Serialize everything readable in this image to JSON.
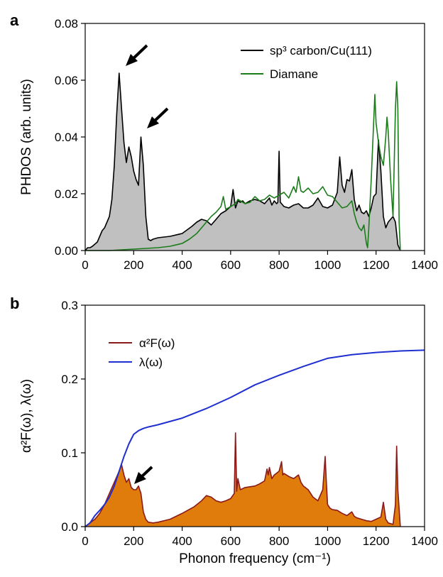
{
  "figure": {
    "xlabel": "Phonon frequency (cm⁻¹)"
  },
  "chart_data": [
    {
      "panel": "a",
      "type": "area",
      "ylabel": "PHDOS (arb. units)",
      "xlim": [
        0,
        1400
      ],
      "ylim": [
        0,
        0.08
      ],
      "xticks": [
        "0",
        "200",
        "400",
        "600",
        "800",
        "1000",
        "1200",
        "1400"
      ],
      "yticks": [
        "0.00",
        "0.02",
        "0.04",
        "0.06",
        "0.08"
      ],
      "legend_position": "top-right",
      "series": [
        {
          "name": "sp³ carbon/Cu(111)",
          "color": "#000000",
          "fill": "#c0c0c0",
          "x": [
            0,
            10,
            20,
            30,
            50,
            60,
            70,
            80,
            100,
            110,
            120,
            130,
            140,
            150,
            160,
            170,
            180,
            190,
            200,
            210,
            220,
            230,
            240,
            250,
            260,
            270,
            280,
            300,
            350,
            400,
            440,
            460,
            480,
            500,
            520,
            540,
            560,
            580,
            600,
            610,
            620,
            630,
            640,
            650,
            660,
            680,
            700,
            720,
            740,
            760,
            770,
            780,
            790,
            795,
            800,
            805,
            810,
            820,
            840,
            860,
            880,
            900,
            920,
            940,
            960,
            980,
            1000,
            1020,
            1040,
            1050,
            1060,
            1070,
            1080,
            1090,
            1100,
            1110,
            1120,
            1130,
            1140,
            1150,
            1160,
            1170,
            1180,
            1190,
            1200,
            1210,
            1220,
            1230,
            1240,
            1250,
            1260,
            1270,
            1280,
            1290,
            1300
          ],
          "y": [
            0,
            0.001,
            0.001,
            0.0015,
            0.003,
            0.005,
            0.007,
            0.008,
            0.012,
            0.018,
            0.03,
            0.048,
            0.0625,
            0.05,
            0.038,
            0.031,
            0.0365,
            0.033,
            0.028,
            0.025,
            0.023,
            0.04,
            0.03,
            0.012,
            0.004,
            0.0035,
            0.004,
            0.0045,
            0.005,
            0.006,
            0.0085,
            0.01,
            0.011,
            0.0105,
            0.009,
            0.011,
            0.013,
            0.014,
            0.0155,
            0.0215,
            0.015,
            0.0175,
            0.017,
            0.0175,
            0.0165,
            0.0175,
            0.018,
            0.0175,
            0.0165,
            0.0185,
            0.016,
            0.0175,
            0.0165,
            0.017,
            0.035,
            0.017,
            0.0165,
            0.0155,
            0.015,
            0.016,
            0.0165,
            0.015,
            0.015,
            0.016,
            0.0185,
            0.0155,
            0.015,
            0.016,
            0.0205,
            0.033,
            0.023,
            0.0205,
            0.025,
            0.0245,
            0.0285,
            0.018,
            0.014,
            0.016,
            0.0135,
            0.013,
            0.014,
            0.012,
            0.015,
            0.019,
            0.02,
            0.039,
            0.028,
            0.012,
            0.008,
            0.01,
            0.011,
            0.012,
            0.01,
            0.002,
            0
          ]
        },
        {
          "name": "Diamane",
          "color": "#1a7d1a",
          "x": [
            0,
            100,
            200,
            300,
            350,
            400,
            430,
            460,
            480,
            500,
            520,
            540,
            560,
            570,
            580,
            600,
            620,
            630,
            640,
            660,
            680,
            700,
            720,
            740,
            760,
            780,
            800,
            820,
            840,
            860,
            870,
            880,
            890,
            900,
            920,
            940,
            960,
            980,
            1000,
            1020,
            1040,
            1060,
            1080,
            1100,
            1110,
            1120,
            1130,
            1140,
            1150,
            1160,
            1165,
            1170,
            1180,
            1190,
            1195,
            1200,
            1210,
            1220,
            1230,
            1240,
            1245,
            1250,
            1260,
            1270,
            1280,
            1285,
            1290,
            1295,
            1300
          ],
          "y": [
            0,
            0,
            0.0005,
            0.001,
            0.0015,
            0.0025,
            0.004,
            0.006,
            0.008,
            0.01,
            0.012,
            0.0135,
            0.0155,
            0.019,
            0.0145,
            0.0155,
            0.0165,
            0.018,
            0.0175,
            0.0165,
            0.017,
            0.019,
            0.0175,
            0.018,
            0.0195,
            0.0185,
            0.0195,
            0.0205,
            0.0185,
            0.0225,
            0.0205,
            0.026,
            0.021,
            0.0205,
            0.022,
            0.02,
            0.0205,
            0.0225,
            0.0195,
            0.019,
            0.017,
            0.015,
            0.0155,
            0.0175,
            0.013,
            0.01,
            0.008,
            0.007,
            0.009,
            0.0025,
            0.001,
            0.008,
            0.025,
            0.045,
            0.055,
            0.045,
            0.038,
            0.033,
            0.03,
            0.04,
            0.047,
            0.042,
            0.025,
            0.012,
            0.05,
            0.0595,
            0.05,
            0.01,
            0
          ]
        }
      ],
      "annotations": [
        "arrow near 140 cm⁻¹ peak",
        "arrow near 230 cm⁻¹ peak"
      ]
    },
    {
      "panel": "b",
      "type": "area",
      "ylabel": "α²F(ω), λ(ω)",
      "xlim": [
        0,
        1400
      ],
      "ylim": [
        0,
        0.3
      ],
      "xticks": [
        "0",
        "200",
        "400",
        "600",
        "800",
        "1000",
        "1200",
        "1400"
      ],
      "yticks": [
        "0.0",
        "0.1",
        "0.2",
        "0.3"
      ],
      "legend_position": "top-left",
      "series": [
        {
          "name": "α²F(ω)",
          "color": "#8b1a1a",
          "fill": "#e07c0c",
          "x": [
            0,
            20,
            40,
            60,
            80,
            100,
            120,
            140,
            150,
            160,
            170,
            180,
            190,
            200,
            210,
            220,
            230,
            240,
            250,
            260,
            280,
            300,
            350,
            400,
            450,
            480,
            500,
            520,
            540,
            560,
            580,
            600,
            615,
            620,
            625,
            630,
            640,
            660,
            680,
            700,
            720,
            740,
            750,
            755,
            760,
            770,
            780,
            800,
            810,
            815,
            820,
            840,
            860,
            880,
            890,
            900,
            920,
            940,
            960,
            980,
            990,
            995,
            1000,
            1010,
            1020,
            1040,
            1060,
            1080,
            1100,
            1110,
            1120,
            1140,
            1160,
            1180,
            1200,
            1220,
            1230,
            1240,
            1250,
            1260,
            1270,
            1280,
            1285,
            1290,
            1300
          ],
          "y": [
            0,
            0.005,
            0.01,
            0.018,
            0.03,
            0.045,
            0.06,
            0.075,
            0.084,
            0.07,
            0.06,
            0.065,
            0.053,
            0.05,
            0.05,
            0.055,
            0.045,
            0.02,
            0.01,
            0.006,
            0.005,
            0.006,
            0.01,
            0.018,
            0.027,
            0.035,
            0.042,
            0.04,
            0.035,
            0.033,
            0.035,
            0.038,
            0.045,
            0.127,
            0.048,
            0.065,
            0.05,
            0.053,
            0.054,
            0.055,
            0.058,
            0.062,
            0.078,
            0.07,
            0.08,
            0.065,
            0.07,
            0.075,
            0.088,
            0.07,
            0.072,
            0.068,
            0.065,
            0.07,
            0.06,
            0.055,
            0.05,
            0.04,
            0.035,
            0.05,
            0.095,
            0.06,
            0.03,
            0.025,
            0.023,
            0.022,
            0.018,
            0.015,
            0.02,
            0.014,
            0.012,
            0.01,
            0.008,
            0.007,
            0.01,
            0.013,
            0.033,
            0.01,
            0.005,
            0.004,
            0.003,
            0.03,
            0.109,
            0.05,
            0
          ]
        },
        {
          "name": "λ(ω)",
          "color": "#1f2fd0",
          "x": [
            0,
            20,
            40,
            60,
            80,
            100,
            120,
            140,
            160,
            180,
            200,
            220,
            240,
            260,
            300,
            400,
            500,
            600,
            700,
            800,
            900,
            1000,
            1100,
            1200,
            1300,
            1400
          ],
          "y": [
            0,
            0.005,
            0.015,
            0.022,
            0.03,
            0.04,
            0.055,
            0.075,
            0.095,
            0.112,
            0.125,
            0.13,
            0.133,
            0.135,
            0.138,
            0.147,
            0.16,
            0.175,
            0.192,
            0.205,
            0.217,
            0.228,
            0.233,
            0.236,
            0.238,
            0.239
          ]
        }
      ],
      "annotations": [
        "arrow near 160 cm⁻¹ peak"
      ]
    }
  ],
  "panel_labels": [
    "a",
    "b"
  ]
}
